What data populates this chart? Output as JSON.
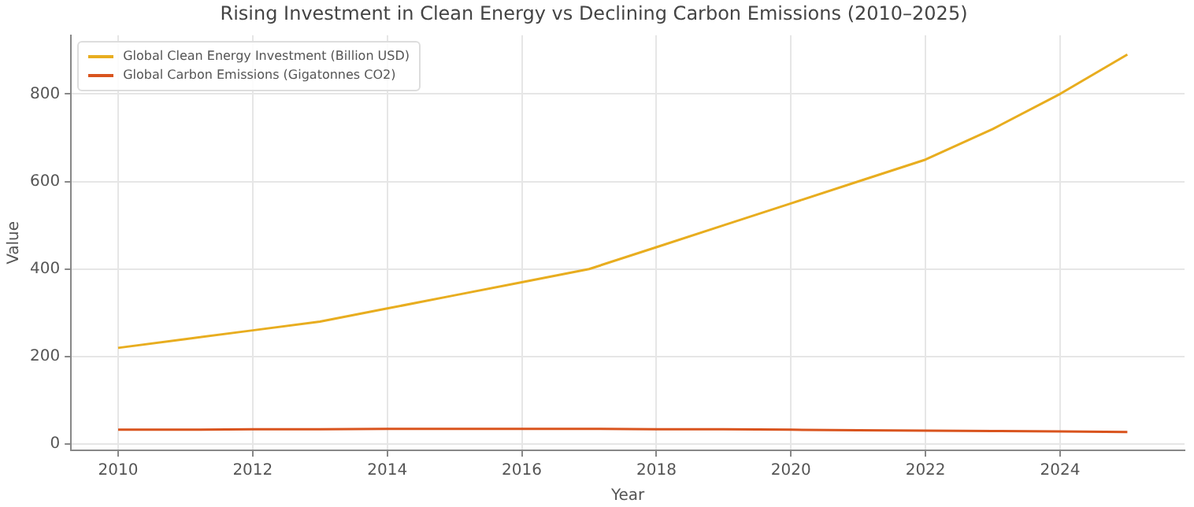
{
  "chart_data": {
    "type": "line",
    "title": "Rising Investment in Clean Energy vs Declining Carbon Emissions (2010–2025)",
    "xlabel": "Year",
    "ylabel": "Value",
    "x": [
      2010,
      2011,
      2012,
      2013,
      2014,
      2015,
      2016,
      2017,
      2018,
      2019,
      2020,
      2021,
      2022,
      2023,
      2024,
      2025
    ],
    "series": [
      {
        "name": "Global Clean Energy Investment (Billion USD)",
        "color": "#e8ad1f",
        "values": [
          220,
          240,
          260,
          280,
          310,
          340,
          370,
          400,
          450,
          500,
          550,
          600,
          650,
          720,
          800,
          890
        ]
      },
      {
        "name": "Global Carbon Emissions (Gigatonnes CO2)",
        "color": "#d9541e",
        "values": [
          33,
          33,
          34,
          34,
          35,
          35,
          35,
          35,
          34,
          34,
          33,
          32,
          31,
          30,
          29,
          28
        ]
      }
    ],
    "xlim": [
      2009.3,
      2025.85
    ],
    "xticks": [
      2010,
      2012,
      2014,
      2016,
      2018,
      2020,
      2022,
      2024
    ],
    "ylim": [
      -14,
      934
    ],
    "yticks": [
      0,
      200,
      400,
      600,
      800
    ],
    "grid": true,
    "legend": "top left",
    "marker": "none",
    "line_style": "solid"
  }
}
